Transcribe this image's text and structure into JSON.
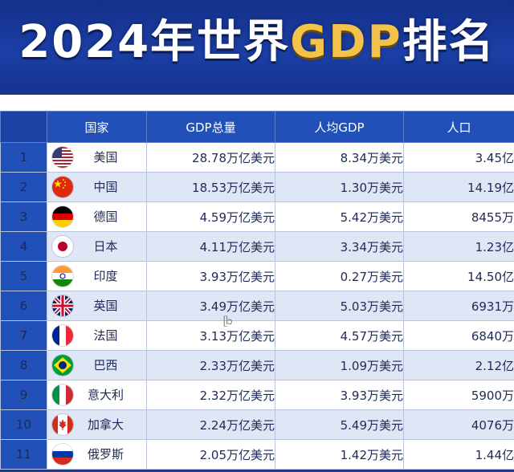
{
  "title": {
    "part1": "2024年世界",
    "part2": "GDP",
    "part3": "排名"
  },
  "table": {
    "headers": {
      "rank": "",
      "country": "国家",
      "gdp_total": "GDP总量",
      "gdp_per_capita": "人均GDP",
      "population": "人口"
    },
    "rows": [
      {
        "rank": "1",
        "country": "美国",
        "flag_icon": "usa-flag-icon",
        "gdp_total": "28.78万亿美元",
        "gdp_per_capita": "8.34万美元",
        "population": "3.45亿"
      },
      {
        "rank": "2",
        "country": "中国",
        "flag_icon": "china-flag-icon",
        "gdp_total": "18.53万亿美元",
        "gdp_per_capita": "1.30万美元",
        "population": "14.19亿"
      },
      {
        "rank": "3",
        "country": "德国",
        "flag_icon": "germany-flag-icon",
        "gdp_total": "4.59万亿美元",
        "gdp_per_capita": "5.42万美元",
        "population": "8455万"
      },
      {
        "rank": "4",
        "country": "日本",
        "flag_icon": "japan-flag-icon",
        "gdp_total": "4.11万亿美元",
        "gdp_per_capita": "3.34万美元",
        "population": "1.23亿"
      },
      {
        "rank": "5",
        "country": "印度",
        "flag_icon": "india-flag-icon",
        "gdp_total": "3.93万亿美元",
        "gdp_per_capita": "0.27万美元",
        "population": "14.50亿"
      },
      {
        "rank": "6",
        "country": "英国",
        "flag_icon": "uk-flag-icon",
        "gdp_total": "3.49万亿美元",
        "gdp_per_capita": "5.03万美元",
        "population": "6931万"
      },
      {
        "rank": "7",
        "country": "法国",
        "flag_icon": "france-flag-icon",
        "gdp_total": "3.13万亿美元",
        "gdp_per_capita": "4.57万美元",
        "population": "6840万"
      },
      {
        "rank": "8",
        "country": "巴西",
        "flag_icon": "brazil-flag-icon",
        "gdp_total": "2.33万亿美元",
        "gdp_per_capita": "1.09万美元",
        "population": "2.12亿"
      },
      {
        "rank": "9",
        "country": "意大利",
        "flag_icon": "italy-flag-icon",
        "gdp_total": "2.32万亿美元",
        "gdp_per_capita": "3.93万美元",
        "population": "5900万"
      },
      {
        "rank": "10",
        "country": "加拿大",
        "flag_icon": "canada-flag-icon",
        "gdp_total": "2.24万亿美元",
        "gdp_per_capita": "5.49万美元",
        "population": "4076万"
      },
      {
        "rank": "11",
        "country": "俄罗斯",
        "flag_icon": "russia-flag-icon",
        "gdp_total": "2.05万亿美元",
        "gdp_per_capita": "1.42万美元",
        "population": "1.44亿"
      }
    ]
  },
  "colors": {
    "header_blue": "#2150b8",
    "title_gold": "#f3c24a",
    "row_alt": "#dfe7f6"
  }
}
